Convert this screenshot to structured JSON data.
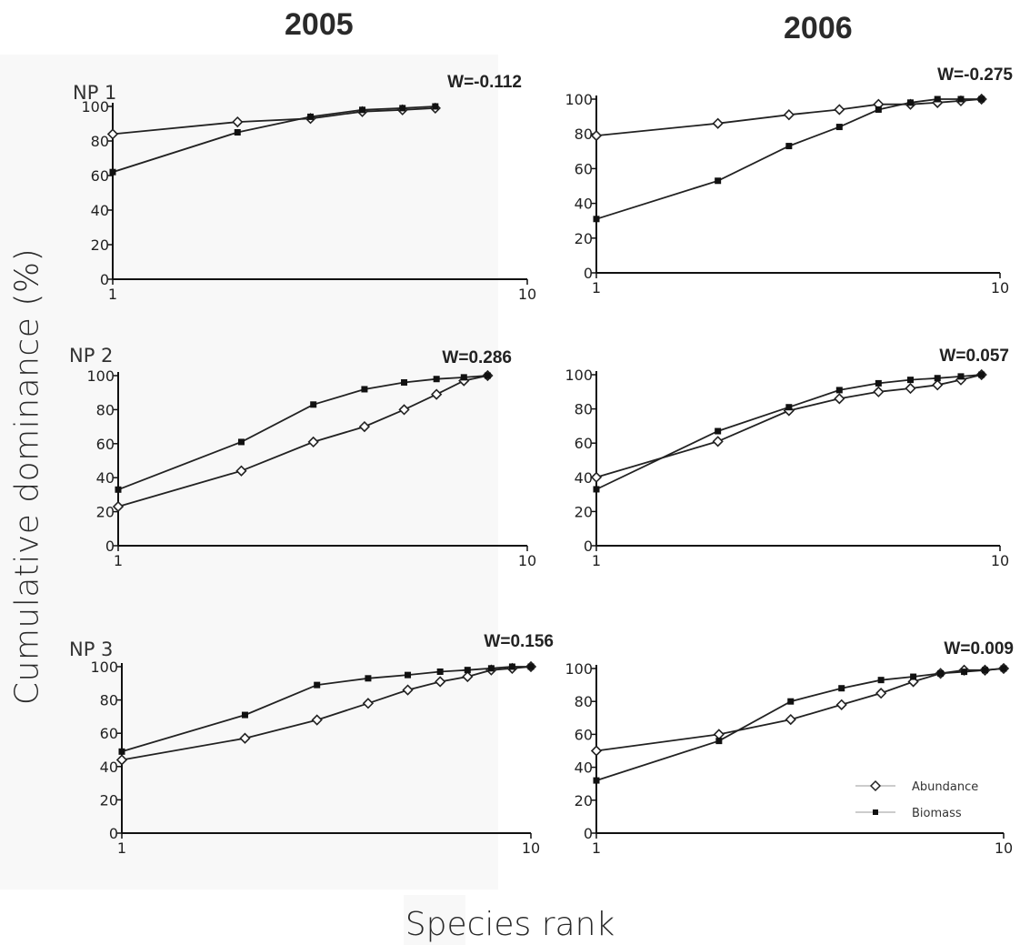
{
  "columns": [
    "2005",
    "2006"
  ],
  "ylabel": "Cumulative dominance (%)",
  "xlabel": "Species rank",
  "legend": [
    "Abundance",
    "Biomass"
  ],
  "chart_data": [
    {
      "type": "line",
      "row_label": "NP 1",
      "column": "2005",
      "annotation": "W=-0.112",
      "xscale": "log",
      "xlim": [
        1,
        10
      ],
      "ylim": [
        0,
        100
      ],
      "xticks": [
        "1",
        "10"
      ],
      "yticks": [
        "0",
        "20",
        "40",
        "60",
        "80",
        "100"
      ],
      "series": [
        {
          "name": "Abundance",
          "x": [
            1,
            2,
            3,
            4,
            5,
            6
          ],
          "y": [
            84,
            91,
            93,
            97,
            98,
            99
          ]
        },
        {
          "name": "Biomass",
          "x": [
            1,
            2,
            3,
            4,
            5,
            6
          ],
          "y": [
            62,
            85,
            94,
            98,
            99,
            100
          ]
        }
      ]
    },
    {
      "type": "line",
      "row_label": "",
      "column": "2006",
      "annotation": "W=-0.275",
      "xscale": "log",
      "xlim": [
        1,
        10
      ],
      "ylim": [
        0,
        100
      ],
      "xticks": [
        "1",
        "10"
      ],
      "yticks": [
        "0",
        "20",
        "40",
        "60",
        "80",
        "100"
      ],
      "series": [
        {
          "name": "Abundance",
          "x": [
            1,
            2,
            3,
            4,
            5,
            6,
            7,
            8,
            9
          ],
          "y": [
            79,
            86,
            91,
            94,
            97,
            97,
            98,
            99,
            100
          ]
        },
        {
          "name": "Biomass",
          "x": [
            1,
            2,
            3,
            4,
            5,
            6,
            7,
            8,
            9
          ],
          "y": [
            31,
            53,
            73,
            84,
            94,
            98,
            100,
            100,
            100
          ]
        }
      ]
    },
    {
      "type": "line",
      "row_label": "NP 2",
      "column": "2005",
      "annotation": "W=0.286",
      "xscale": "log",
      "xlim": [
        1,
        10
      ],
      "ylim": [
        0,
        100
      ],
      "xticks": [
        "1",
        "10"
      ],
      "yticks": [
        "0",
        "20",
        "40",
        "60",
        "80",
        "100"
      ],
      "series": [
        {
          "name": "Abundance",
          "x": [
            1,
            2,
            3,
            4,
            5,
            6,
            7,
            8
          ],
          "y": [
            23,
            44,
            61,
            70,
            80,
            89,
            97,
            100
          ]
        },
        {
          "name": "Biomass",
          "x": [
            1,
            2,
            3,
            4,
            5,
            6,
            7,
            8
          ],
          "y": [
            33,
            61,
            83,
            92,
            96,
            98,
            99,
            100
          ]
        }
      ]
    },
    {
      "type": "line",
      "row_label": "",
      "column": "2006",
      "annotation": "W=0.057",
      "xscale": "log",
      "xlim": [
        1,
        10
      ],
      "ylim": [
        0,
        100
      ],
      "xticks": [
        "1",
        "10"
      ],
      "yticks": [
        "0",
        "20",
        "40",
        "60",
        "80",
        "100"
      ],
      "series": [
        {
          "name": "Abundance",
          "x": [
            1,
            2,
            3,
            4,
            5,
            6,
            7,
            8,
            9
          ],
          "y": [
            40,
            61,
            79,
            86,
            90,
            92,
            94,
            97,
            100
          ]
        },
        {
          "name": "Biomass",
          "x": [
            1,
            2,
            3,
            4,
            5,
            6,
            7,
            8,
            9
          ],
          "y": [
            33,
            67,
            81,
            91,
            95,
            97,
            98,
            99,
            100
          ]
        }
      ]
    },
    {
      "type": "line",
      "row_label": "NP 3",
      "column": "2005",
      "annotation": "W=0.156",
      "xscale": "log",
      "xlim": [
        1,
        10
      ],
      "ylim": [
        0,
        100
      ],
      "xticks": [
        "1",
        "10"
      ],
      "yticks": [
        "0",
        "20",
        "40",
        "60",
        "80",
        "100"
      ],
      "series": [
        {
          "name": "Abundance",
          "x": [
            1,
            2,
            3,
            4,
            5,
            6,
            7,
            8,
            9,
            10
          ],
          "y": [
            44,
            57,
            68,
            78,
            86,
            91,
            94,
            98,
            99,
            100
          ]
        },
        {
          "name": "Biomass",
          "x": [
            1,
            2,
            3,
            4,
            5,
            6,
            7,
            8,
            9,
            10
          ],
          "y": [
            49,
            71,
            89,
            93,
            95,
            97,
            98,
            99,
            100,
            100
          ]
        }
      ]
    },
    {
      "type": "line",
      "row_label": "",
      "column": "2006",
      "annotation": "W=0.009",
      "xscale": "log",
      "xlim": [
        1,
        10
      ],
      "ylim": [
        0,
        100
      ],
      "xticks": [
        "1",
        "10"
      ],
      "yticks": [
        "0",
        "20",
        "40",
        "60",
        "80",
        "100"
      ],
      "series": [
        {
          "name": "Abundance",
          "x": [
            1,
            2,
            3,
            4,
            5,
            6,
            7,
            8,
            9,
            10
          ],
          "y": [
            50,
            60,
            69,
            78,
            85,
            92,
            97,
            99,
            99,
            100
          ]
        },
        {
          "name": "Biomass",
          "x": [
            1,
            2,
            3,
            4,
            5,
            6,
            7,
            8,
            9,
            10
          ],
          "y": [
            32,
            56,
            80,
            88,
            93,
            95,
            97,
            98,
            99,
            100
          ]
        }
      ]
    }
  ]
}
